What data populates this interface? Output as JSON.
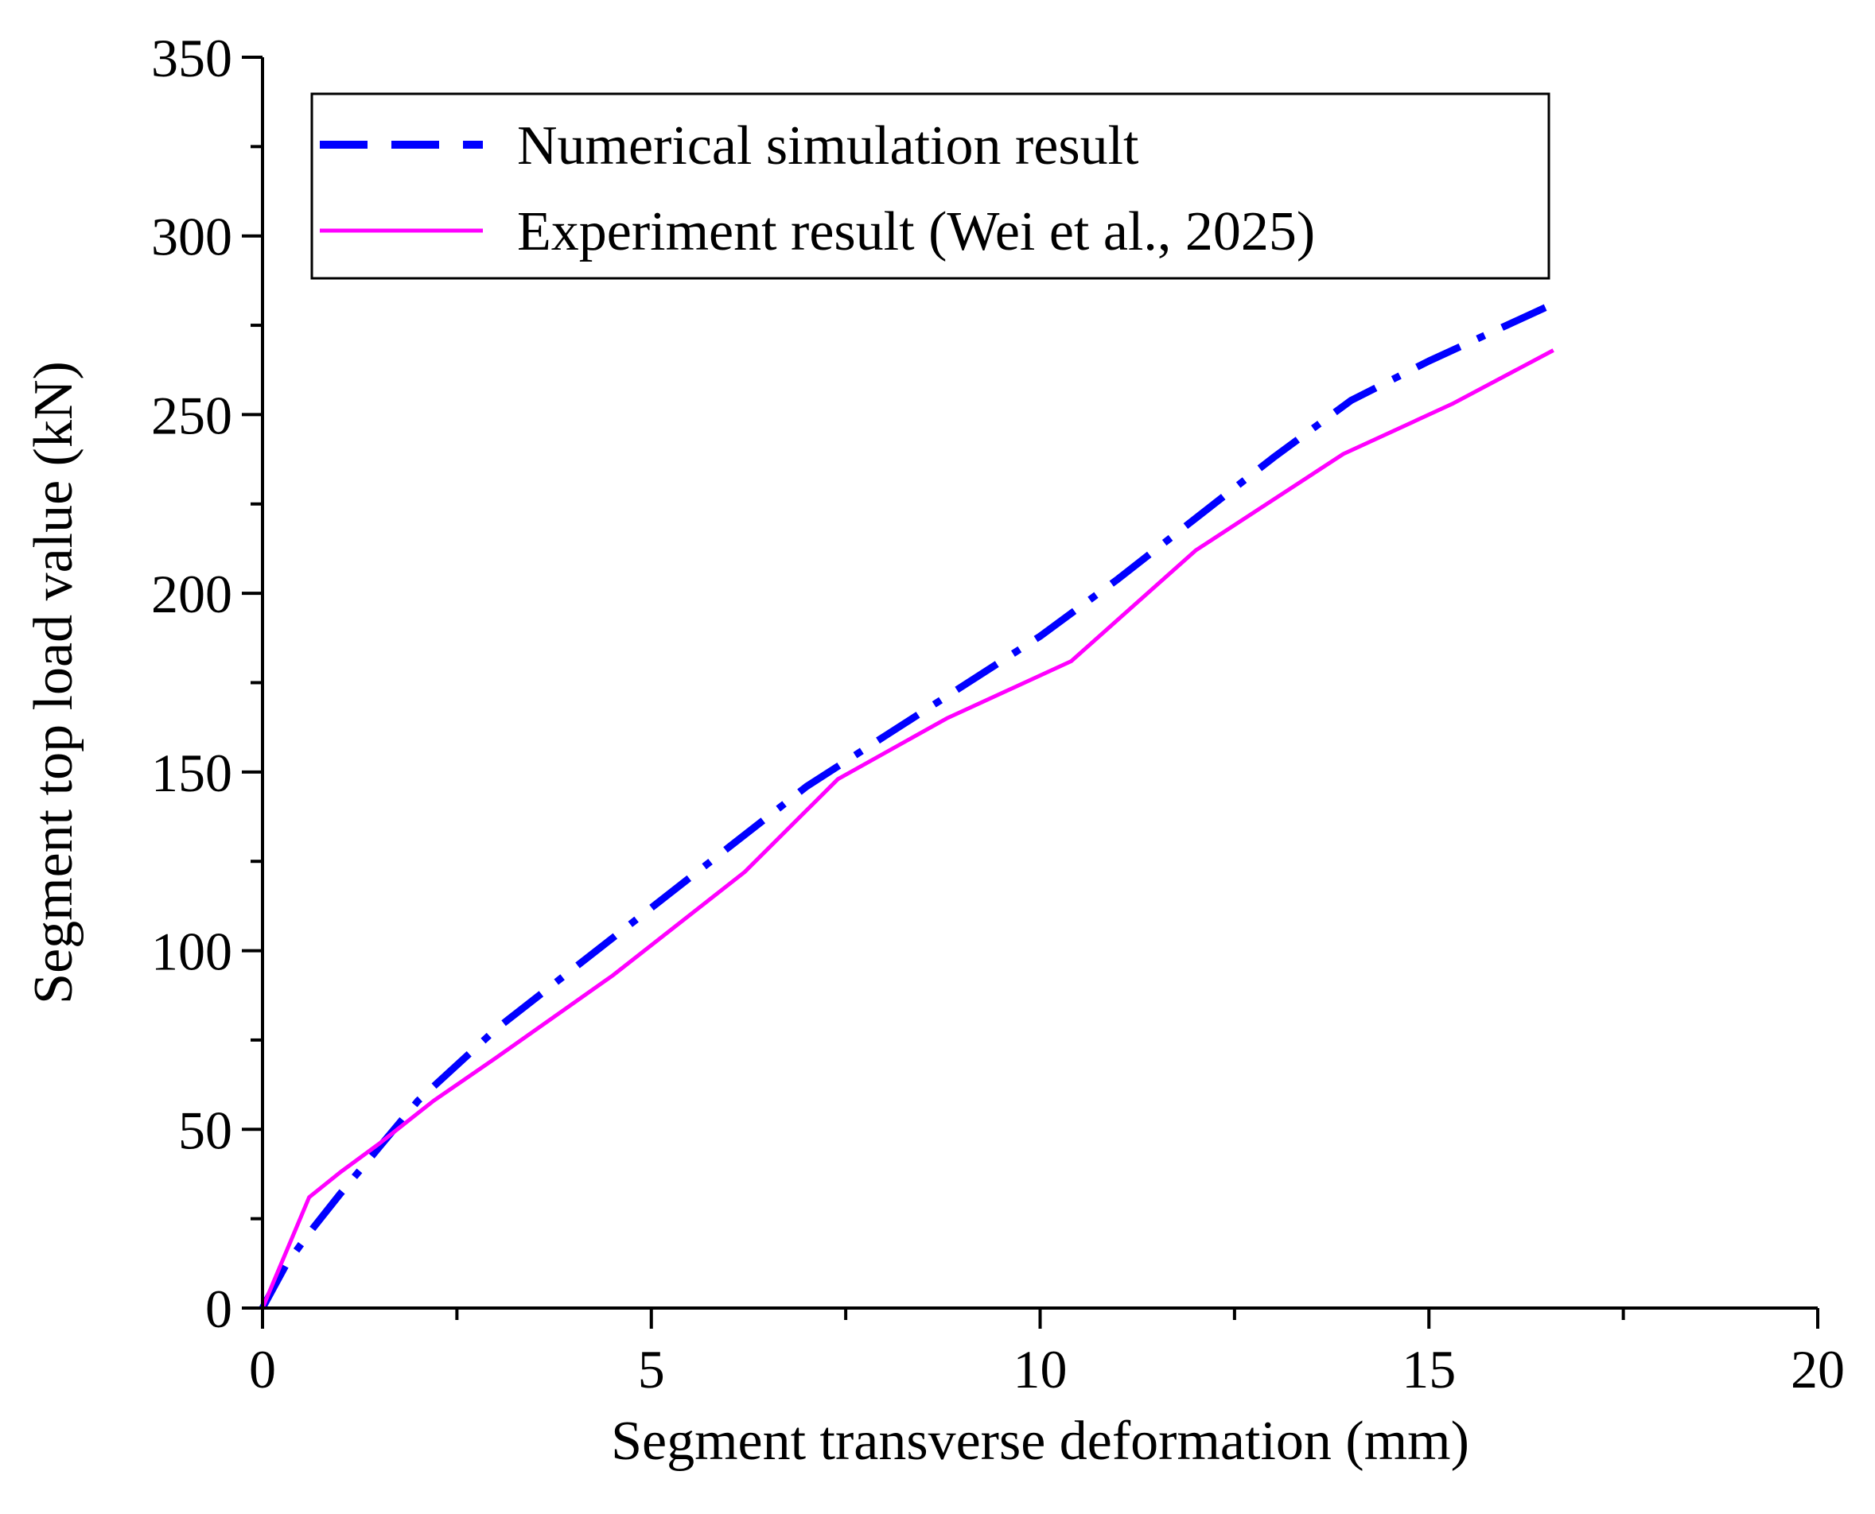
{
  "chart_data": {
    "type": "line",
    "title": "",
    "xlabel": "Segment transverse deformation (mm)",
    "ylabel": "Segment top load value  (kN)",
    "xlim": [
      0,
      20
    ],
    "ylim": [
      0,
      350
    ],
    "x_ticks": [
      0,
      5,
      10,
      15,
      20
    ],
    "y_ticks": [
      0,
      50,
      100,
      150,
      200,
      250,
      300,
      350
    ],
    "x_tick_labels": [
      "0",
      "5",
      "10",
      "15",
      "20"
    ],
    "y_tick_labels": [
      "0",
      "50",
      "100",
      "150",
      "200",
      "250",
      "300",
      "350"
    ],
    "legend_position": "top-left",
    "series": [
      {
        "name": "Numerical simulation result",
        "color": "#0000FF",
        "style": "dash-dot",
        "x": [
          0,
          0.3,
          0.6,
          1.0,
          1.5,
          2.0,
          3.0,
          4.0,
          5.0,
          6.0,
          7.0,
          7.5,
          8.0,
          9.0,
          10.0,
          11.0,
          12.0,
          13.0,
          14.0,
          15.0,
          16.0,
          16.5
        ],
        "y": [
          0,
          12,
          21,
          32,
          45,
          58,
          78,
          95,
          112,
          129,
          146,
          153,
          160,
          174,
          188,
          204,
          221,
          238,
          254,
          265,
          275,
          280
        ]
      },
      {
        "name": "Experiment result (Wei et al., 2025)",
        "color": "#FF00FF",
        "style": "solid",
        "x": [
          0,
          0.6,
          1.0,
          1.5,
          2.2,
          3.0,
          4.5,
          6.2,
          7.4,
          8.8,
          10.4,
          12.0,
          13.9,
          15.3,
          16.6
        ],
        "y": [
          0,
          31,
          38,
          46,
          58,
          70,
          93,
          122,
          148,
          165,
          181,
          212,
          239,
          253,
          268
        ]
      }
    ]
  }
}
